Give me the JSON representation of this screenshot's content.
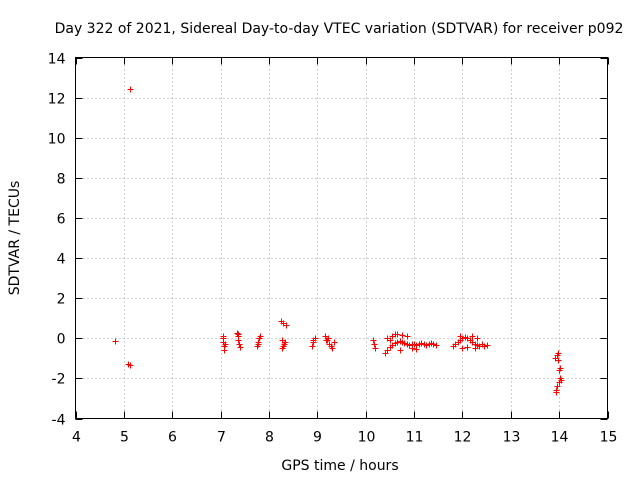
{
  "chart_data": {
    "type": "scatter",
    "title": "Day 322 of 2021, Sidereal Day-to-day VTEC variation (SDTVAR) for receiver p092",
    "xlabel": "GPS time / hours",
    "ylabel": "SDTVAR / TECUs",
    "xlim": [
      4,
      15
    ],
    "ylim": [
      -4,
      14
    ],
    "x_ticks": [
      "4",
      "5",
      "6",
      "7",
      "8",
      "9",
      "10",
      "11",
      "12",
      "13",
      "14",
      "15"
    ],
    "y_ticks": [
      "-4",
      "-2",
      "0",
      "2",
      "4",
      "6",
      "8",
      "10",
      "12",
      "14"
    ],
    "grid": true,
    "marker": "+",
    "series": [
      {
        "name": "SDTVAR",
        "color": "#ff0000",
        "x": [
          4.82,
          5.12,
          5.08,
          5.13,
          7.05,
          7.05,
          7.07,
          7.08,
          7.06,
          7.1,
          7.33,
          7.35,
          7.37,
          7.38,
          7.36,
          7.4,
          7.75,
          7.78,
          7.8,
          7.82,
          7.77,
          8.25,
          8.3,
          8.35,
          8.28,
          8.32,
          8.26,
          8.3,
          8.34,
          8.9,
          8.92,
          8.95,
          8.91,
          9.15,
          9.2,
          9.25,
          9.3,
          9.35,
          9.22,
          9.28,
          9.18,
          10.15,
          10.17,
          10.2,
          10.4,
          10.45,
          10.5,
          10.55,
          10.6,
          10.65,
          10.7,
          10.75,
          10.8,
          10.85,
          10.9,
          10.95,
          11.0,
          11.05,
          11.1,
          11.15,
          11.2,
          11.25,
          11.3,
          11.35,
          11.4,
          11.45,
          10.45,
          10.55,
          10.65,
          10.75,
          10.85,
          10.95,
          11.05,
          10.5,
          10.6,
          10.7,
          11.8,
          11.85,
          11.9,
          11.95,
          12.0,
          12.05,
          12.1,
          12.15,
          12.2,
          12.25,
          12.3,
          12.35,
          12.4,
          12.45,
          12.5,
          12.0,
          12.1,
          12.2,
          12.3,
          11.95,
          12.25,
          13.92,
          13.95,
          13.97,
          14.0,
          14.02,
          13.94,
          13.96,
          13.99,
          14.01,
          14.03,
          13.93,
          13.98
        ],
        "y": [
          -0.12,
          12.45,
          -1.3,
          -1.35,
          0.0,
          -0.2,
          -0.4,
          -0.6,
          0.1,
          -0.3,
          0.25,
          0.1,
          -0.1,
          -0.3,
          0.2,
          -0.45,
          -0.4,
          -0.2,
          0.0,
          0.1,
          -0.3,
          0.85,
          0.75,
          0.65,
          -0.1,
          -0.3,
          -0.5,
          -0.4,
          -0.2,
          -0.4,
          -0.1,
          0.0,
          -0.2,
          0.1,
          -0.1,
          -0.3,
          -0.5,
          -0.2,
          0.0,
          -0.4,
          -0.1,
          -0.1,
          -0.3,
          -0.5,
          -0.75,
          -0.6,
          -0.45,
          -0.35,
          -0.25,
          -0.2,
          -0.15,
          -0.2,
          -0.25,
          -0.3,
          -0.35,
          -0.3,
          -0.3,
          -0.35,
          -0.3,
          -0.25,
          -0.3,
          -0.35,
          -0.3,
          -0.25,
          -0.3,
          -0.35,
          0.0,
          0.1,
          0.2,
          0.15,
          0.1,
          -0.5,
          -0.55,
          -0.1,
          0.2,
          -0.6,
          -0.4,
          -0.3,
          -0.2,
          -0.1,
          0.0,
          0.05,
          0.0,
          -0.1,
          -0.2,
          -0.3,
          -0.35,
          -0.4,
          -0.3,
          -0.4,
          -0.35,
          -0.5,
          -0.45,
          0.1,
          0.0,
          0.1,
          -0.5,
          -1.0,
          -0.85,
          -0.75,
          -1.6,
          -1.5,
          -2.6,
          -2.4,
          -2.2,
          -2.0,
          -2.1,
          -2.7,
          -1.1
        ]
      }
    ]
  }
}
